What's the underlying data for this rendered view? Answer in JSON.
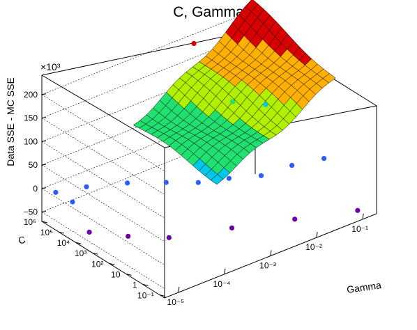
{
  "chart_data": {
    "type": "scatter3d-surface",
    "title": "C, Gamma",
    "xlabel": "Gamma",
    "ylabel": "C",
    "zlabel": "Data SSE - MC SSE",
    "z_multiplier_label": "×10³",
    "x_scale": "log",
    "y_scale": "log",
    "xlim": [
      5e-06,
      0.2
    ],
    "ylim": [
      0.05,
      1000000
    ],
    "zlim": [
      -70,
      250
    ],
    "x_ticks": [
      "10⁻⁵",
      "10⁻⁴",
      "10⁻³",
      "10⁻²",
      "10⁻¹"
    ],
    "y_ticks": [
      "10⁻¹",
      "1",
      "10",
      "10²",
      "10³",
      "10⁴",
      "10⁵",
      "10⁶"
    ],
    "z_ticks": [
      "−50",
      "0",
      "50",
      "100",
      "150",
      "200"
    ],
    "colormap": [
      "#6a00a8",
      "#2a5cff",
      "#00c8e8",
      "#20e070",
      "#b0f000",
      "#ffb000",
      "#d80000"
    ],
    "scatter_points": [
      {
        "gamma": 1e-05,
        "C": 1000000,
        "z": -20
      },
      {
        "gamma": 1e-05,
        "C": 100000,
        "z": -18
      },
      {
        "gamma": 3e-05,
        "C": 300000,
        "z": -15
      },
      {
        "gamma": 0.0001,
        "C": 30000,
        "z": -5
      },
      {
        "gamma": 0.0003,
        "C": 3000,
        "z": 0
      },
      {
        "gamma": 0.001,
        "C": 1000,
        "z": -10
      },
      {
        "gamma": 0.003,
        "C": 300,
        "z": -8
      },
      {
        "gamma": 0.01,
        "C": 100,
        "z": -12
      },
      {
        "gamma": 0.03,
        "C": 30,
        "z": 3
      },
      {
        "gamma": 0.1,
        "C": 10,
        "z": 8
      },
      {
        "gamma": 1e-05,
        "C": 10000,
        "z": -60
      },
      {
        "gamma": 3e-05,
        "C": 1000,
        "z": -65
      },
      {
        "gamma": 0.0001,
        "C": 100,
        "z": -66
      },
      {
        "gamma": 0.001,
        "C": 10,
        "z": -62
      },
      {
        "gamma": 0.01,
        "C": 1,
        "z": -60
      },
      {
        "gamma": 0.1,
        "C": 0.1,
        "z": -58
      },
      {
        "gamma": 0.03,
        "C": 100000,
        "z": 60
      },
      {
        "gamma": 0.1,
        "C": 30000,
        "z": 45
      },
      {
        "gamma": 0.01,
        "C": 1000000,
        "z": 180
      },
      {
        "gamma": 0.1,
        "C": 1000000,
        "z": 240
      }
    ],
    "surface_peak_z": 210,
    "surface_min_z": 10
  }
}
